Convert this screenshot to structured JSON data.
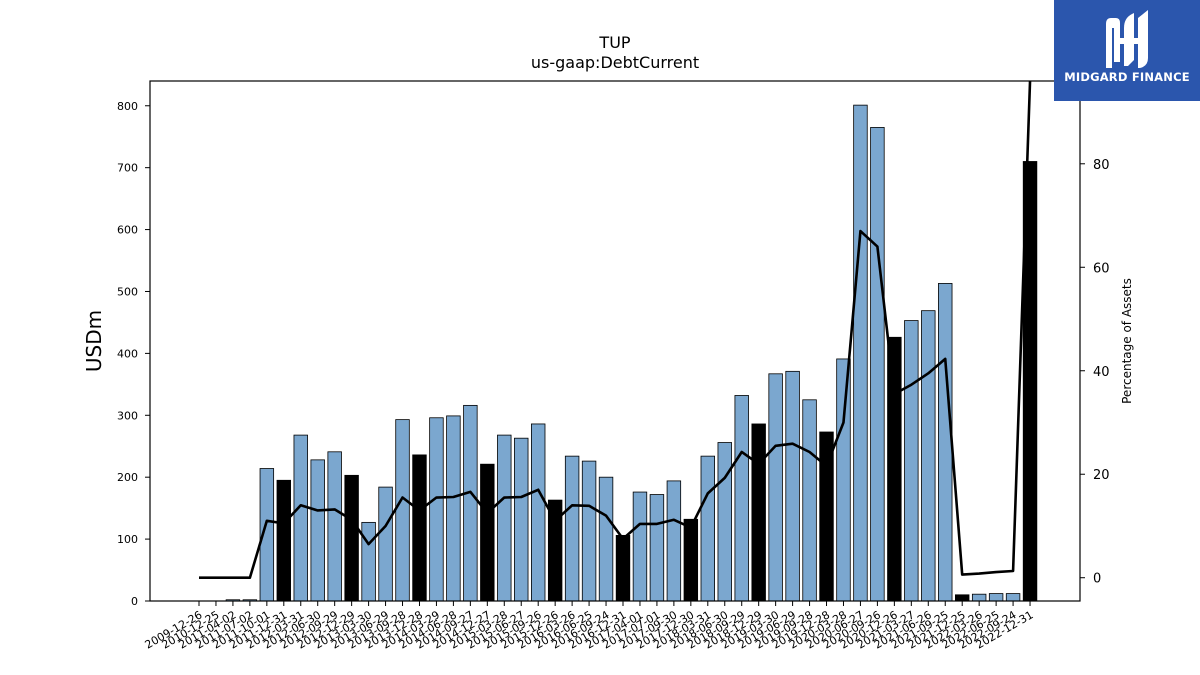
{
  "logo": {
    "name": "MIDGARD FINANCE"
  },
  "chart_data": {
    "type": "bar",
    "title": "TUP",
    "subtitle": "us-gaap:DebtCurrent",
    "ylabel": "USDm",
    "y2label": "Percentage of Assets",
    "ylim": [
      0,
      840
    ],
    "y2lim": [
      -4.5,
      96
    ],
    "yticks": [
      0,
      100,
      200,
      300,
      400,
      500,
      600,
      700,
      800
    ],
    "y2ticks": [
      0,
      20,
      40,
      60,
      80
    ],
    "categories": [
      "2009-12-26",
      "2010-12-25",
      "2011-04-02",
      "2011-07-02",
      "2011-10-01",
      "2011-12-31",
      "2012-03-31",
      "2012-06-30",
      "2012-09-29",
      "2012-12-29",
      "2013-03-30",
      "2013-06-29",
      "2013-09-28",
      "2013-12-28",
      "2014-03-29",
      "2014-06-28",
      "2014-09-27",
      "2014-12-27",
      "2015-03-28",
      "2015-06-27",
      "2015-09-26",
      "2015-12-26",
      "2016-03-26",
      "2016-06-25",
      "2016-09-24",
      "2016-12-31",
      "2017-04-01",
      "2017-07-01",
      "2017-09-30",
      "2017-12-30",
      "2018-03-31",
      "2018-06-30",
      "2018-09-29",
      "2018-12-29",
      "2019-03-30",
      "2019-06-29",
      "2019-09-28",
      "2019-12-28",
      "2020-03-28",
      "2020-06-27",
      "2020-09-26",
      "2020-12-26",
      "2021-03-27",
      "2021-06-26",
      "2021-09-25",
      "2021-12-25",
      "2022-03-26",
      "2022-06-25",
      "2022-09-24",
      "2022-12-31"
    ],
    "tick_labels": [
      "2009-12-26",
      "2010-12-25",
      "2011-04-02",
      "2011-07-02",
      "2011-10-01",
      "2011-12-31",
      "2012-03-31",
      "2012-06-30",
      "2012-09-29",
      "2012-12-29",
      "2013-03-30",
      "2013-06-29",
      "2013-09-28",
      "2013-12-28",
      "2014-03-29",
      "2014-06-28",
      "2014-09-27",
      "2014-12-27",
      "2015-03-28",
      "2015-06-27",
      "2015-09-26",
      "2015-12-26",
      "2016-03-26",
      "2016-06-25",
      "2016-09-24",
      "2016-12-31",
      "2017-04-01",
      "2017-07-01",
      "2017-09-30",
      "2017-12-30",
      "2018-03-31",
      "2018-06-30",
      "2018-09-29",
      "2018-12-29",
      "2019-03-30",
      "2019-06-29",
      "2019-09-28",
      "2019-12-28",
      "2020-03-28",
      "2020-06-27",
      "2020-09-26",
      "2020-12-26",
      "2021-03-27",
      "2021-06-26",
      "2021-09-25",
      "2021-12-25",
      "2022-03-26",
      "2022-06-25",
      "2022-09-24",
      "2022-12-31"
    ],
    "series": [
      {
        "kind": "bar",
        "values": [
          0,
          0,
          2,
          2,
          214,
          195,
          268,
          228,
          241,
          203,
          127,
          184,
          293,
          236,
          296,
          299,
          316,
          221,
          268,
          263,
          286,
          163,
          234,
          226,
          200,
          106,
          176,
          172,
          194,
          132,
          234,
          256,
          332,
          286,
          367,
          371,
          325,
          273,
          391,
          801,
          765,
          426,
          453,
          469,
          513,
          10,
          11,
          12,
          12,
          710
        ],
        "annual": [
          false,
          true,
          false,
          false,
          false,
          true,
          false,
          false,
          false,
          true,
          false,
          false,
          false,
          true,
          false,
          false,
          false,
          true,
          false,
          false,
          false,
          true,
          false,
          false,
          false,
          true,
          false,
          false,
          false,
          true,
          false,
          false,
          false,
          true,
          false,
          false,
          false,
          true,
          false,
          false,
          false,
          true,
          false,
          false,
          false,
          true,
          false,
          false,
          false,
          true
        ],
        "colors": {
          "quarterly": "#7ba7cf",
          "annual": "#000000",
          "outline": "#000000"
        }
      },
      {
        "kind": "line",
        "axis": "right",
        "values": [
          0,
          0,
          0,
          0,
          11,
          10.5,
          14,
          13,
          13.2,
          11.2,
          6.5,
          10,
          15.5,
          13,
          15.5,
          15.6,
          16.6,
          12.5,
          15.5,
          15.6,
          17,
          11,
          14,
          13.9,
          12,
          7.5,
          10.4,
          10.4,
          11.2,
          9.7,
          16.3,
          19.3,
          24.3,
          22,
          25.5,
          25.9,
          24.3,
          21.6,
          30,
          67,
          64,
          35.5,
          37.3,
          39.5,
          42.3,
          0.6,
          0.8,
          1.1,
          1.3,
          96
        ],
        "color": "#000000"
      }
    ],
    "grid": false,
    "legend": "none"
  }
}
